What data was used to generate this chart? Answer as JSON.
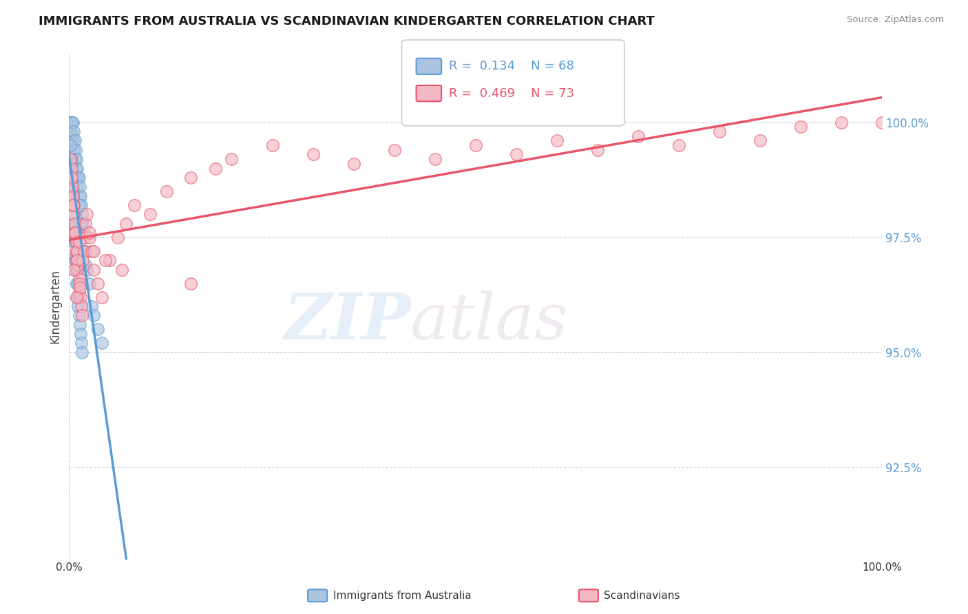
{
  "title": "IMMIGRANTS FROM AUSTRALIA VS SCANDINAVIAN KINDERGARTEN CORRELATION CHART",
  "source": "Source: ZipAtlas.com",
  "ylabel": "Kindergarten",
  "yticks": [
    92.5,
    95.0,
    97.5,
    100.0
  ],
  "ytick_labels": [
    "92.5%",
    "95.0%",
    "97.5%",
    "100.0%"
  ],
  "xlim": [
    0.0,
    100.0
  ],
  "ylim": [
    90.5,
    101.5
  ],
  "blue_color": "#5b9bd5",
  "pink_color": "#e8546a",
  "blue_scatter_color": "#aac4e0",
  "pink_scatter_color": "#f4b8c4",
  "blue_R": "0.134",
  "blue_N": "68",
  "pink_R": "0.469",
  "pink_N": "73",
  "blue_x": [
    0.1,
    0.2,
    0.2,
    0.3,
    0.3,
    0.3,
    0.4,
    0.4,
    0.5,
    0.5,
    0.6,
    0.6,
    0.7,
    0.7,
    0.8,
    0.8,
    0.9,
    0.9,
    1.0,
    1.0,
    1.1,
    1.2,
    1.2,
    1.3,
    1.4,
    1.5,
    1.6,
    1.7,
    1.8,
    2.0,
    2.2,
    2.5,
    2.8,
    3.0,
    0.2,
    0.3,
    0.4,
    0.5,
    0.6,
    0.7,
    0.8,
    0.9,
    1.0,
    1.1,
    1.2,
    1.3,
    1.4,
    1.5,
    1.6,
    0.15,
    0.25,
    0.35,
    0.45,
    0.55,
    0.65,
    0.75,
    0.85,
    0.95,
    1.05,
    1.15,
    1.8,
    2.0,
    1.2,
    1.5,
    0.5,
    0.8,
    3.5,
    4.0
  ],
  "blue_y": [
    100.0,
    100.0,
    99.8,
    100.0,
    99.5,
    99.2,
    100.0,
    99.7,
    100.0,
    99.6,
    99.8,
    99.4,
    99.6,
    99.2,
    99.4,
    99.0,
    99.2,
    98.8,
    99.0,
    98.6,
    98.8,
    98.8,
    98.4,
    98.6,
    98.4,
    98.2,
    98.0,
    97.8,
    97.6,
    97.2,
    96.8,
    96.5,
    96.0,
    95.8,
    99.2,
    98.6,
    98.2,
    97.8,
    97.4,
    97.0,
    96.8,
    96.5,
    96.2,
    96.0,
    95.8,
    95.6,
    95.4,
    95.2,
    95.0,
    99.5,
    99.1,
    98.8,
    98.4,
    98.0,
    97.7,
    97.4,
    97.1,
    96.8,
    96.5,
    96.2,
    97.2,
    96.9,
    98.2,
    97.8,
    98.5,
    97.5,
    95.5,
    95.2
  ],
  "pink_x": [
    0.1,
    0.2,
    0.2,
    0.3,
    0.3,
    0.4,
    0.4,
    0.5,
    0.5,
    0.6,
    0.7,
    0.7,
    0.8,
    0.8,
    0.9,
    0.9,
    1.0,
    1.0,
    1.1,
    1.2,
    1.2,
    1.3,
    1.4,
    1.5,
    1.6,
    1.7,
    1.8,
    1.9,
    2.0,
    2.2,
    2.5,
    2.8,
    3.0,
    3.5,
    4.0,
    5.0,
    6.0,
    7.0,
    8.0,
    10.0,
    12.0,
    15.0,
    18.0,
    20.0,
    25.0,
    30.0,
    35.0,
    40.0,
    45.0,
    50.0,
    55.0,
    60.0,
    65.0,
    70.0,
    75.0,
    80.0,
    85.0,
    90.0,
    95.0,
    100.0,
    0.3,
    0.5,
    0.7,
    1.0,
    1.3,
    0.6,
    0.9,
    1.2,
    2.5,
    3.0,
    4.5,
    6.5,
    15.0
  ],
  "pink_y": [
    99.2,
    98.8,
    98.5,
    99.0,
    98.4,
    98.6,
    98.2,
    98.4,
    98.0,
    98.2,
    97.8,
    97.5,
    97.6,
    97.2,
    97.4,
    97.0,
    97.2,
    96.8,
    96.9,
    96.6,
    96.3,
    96.5,
    96.2,
    96.0,
    95.8,
    97.0,
    97.2,
    97.5,
    97.8,
    98.0,
    97.5,
    97.2,
    96.8,
    96.5,
    96.2,
    97.0,
    97.5,
    97.8,
    98.2,
    98.0,
    98.5,
    98.8,
    99.0,
    99.2,
    99.5,
    99.3,
    99.1,
    99.4,
    99.2,
    99.5,
    99.3,
    99.6,
    99.4,
    99.7,
    99.5,
    99.8,
    99.6,
    99.9,
    100.0,
    100.0,
    98.8,
    98.2,
    97.6,
    97.0,
    96.4,
    96.8,
    96.2,
    97.4,
    97.6,
    97.2,
    97.0,
    96.8,
    96.5
  ]
}
